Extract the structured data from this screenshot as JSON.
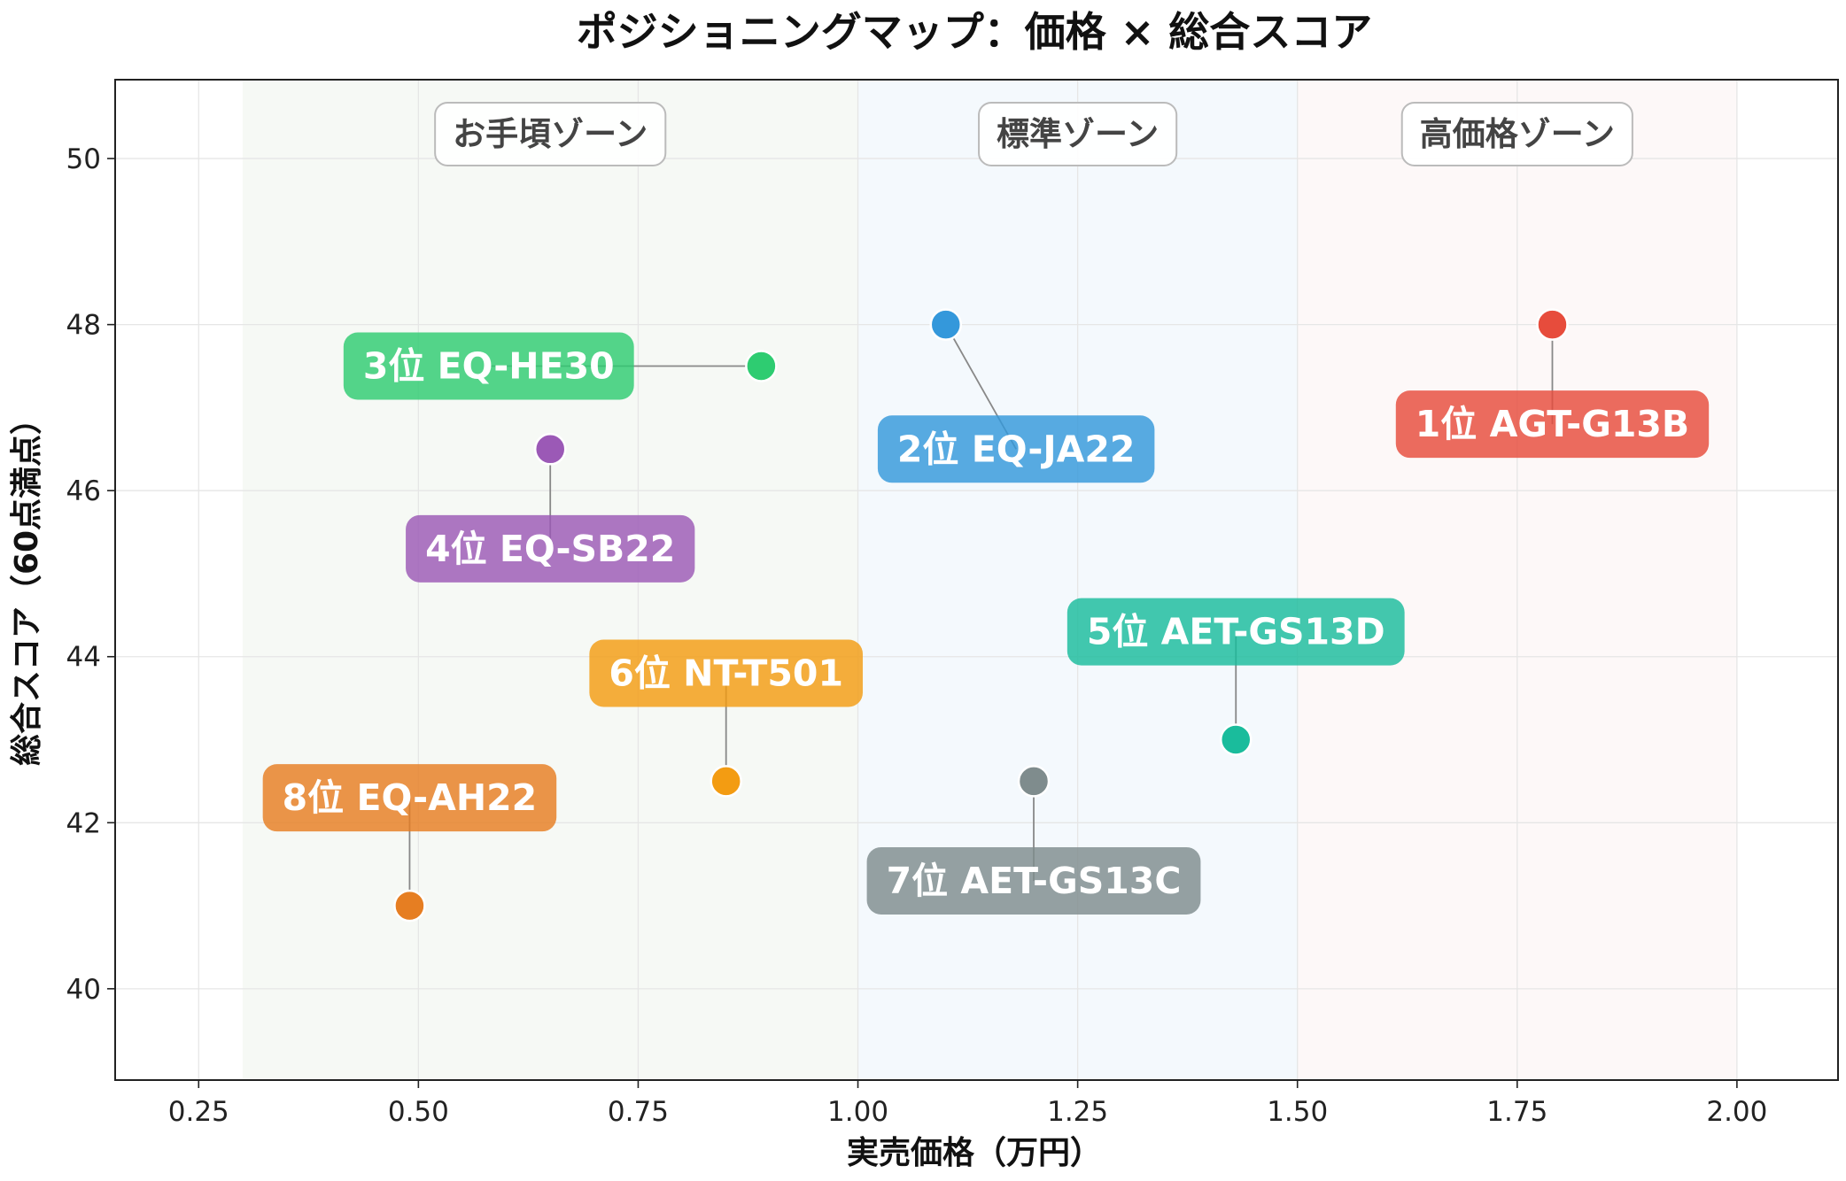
{
  "chart_data": {
    "type": "scatter",
    "title": "ポジショニングマップ：価格 × 総合スコア",
    "xlabel": "実売価格（万円）",
    "ylabel": "総合スコア（60点満点）",
    "xlim": [
      0.155,
      2.115
    ],
    "ylim": [
      38.9,
      50.95
    ],
    "x_ticks": [
      "0.25",
      "0.50",
      "0.75",
      "1.00",
      "1.25",
      "1.50",
      "1.75",
      "2.00"
    ],
    "x_tick_values": [
      0.25,
      0.5,
      0.75,
      1.0,
      1.25,
      1.5,
      1.75,
      2.0
    ],
    "y_ticks": [
      "40",
      "42",
      "44",
      "46",
      "48",
      "50"
    ],
    "y_tick_values": [
      40,
      42,
      44,
      46,
      48,
      50
    ],
    "grid": true,
    "zones": [
      {
        "label": "お手頃ゾーン",
        "x_range": [
          0.3,
          1.0
        ],
        "color": "#e8efe6"
      },
      {
        "label": "標準ゾーン",
        "x_range": [
          1.0,
          1.5
        ],
        "color": "#e3f0f9"
      },
      {
        "label": "高価格ゾーン",
        "x_range": [
          1.5,
          2.0
        ],
        "color": "#fbeeee"
      }
    ],
    "points": [
      {
        "label": "1位 AGT-G13B",
        "x": 1.79,
        "y": 48.0,
        "color": "#e74c3c",
        "label_x": 1.79,
        "label_y": 46.8
      },
      {
        "label": "2位 EQ-JA22",
        "x": 1.1,
        "y": 48.0,
        "color": "#3498db",
        "label_x": 1.18,
        "label_y": 46.5
      },
      {
        "label": "3位 EQ-HE30",
        "x": 0.89,
        "y": 47.5,
        "color": "#2ecc71",
        "label_x": 0.58,
        "label_y": 47.5
      },
      {
        "label": "4位 EQ-SB22",
        "x": 0.65,
        "y": 46.5,
        "color": "#9b59b6",
        "label_x": 0.65,
        "label_y": 45.3
      },
      {
        "label": "5位 AET-GS13D",
        "x": 1.43,
        "y": 43.0,
        "color": "#1abc9c",
        "label_x": 1.43,
        "label_y": 44.3
      },
      {
        "label": "6位 NT-T501",
        "x": 0.85,
        "y": 42.5,
        "color": "#f39c12",
        "label_x": 0.85,
        "label_y": 43.8
      },
      {
        "label": "7位 AET-GS13C",
        "x": 1.2,
        "y": 42.5,
        "color": "#7f8c8d",
        "label_x": 1.2,
        "label_y": 41.3
      },
      {
        "label": "8位 EQ-AH22",
        "x": 0.49,
        "y": 41.0,
        "color": "#e67e22",
        "label_x": 0.49,
        "label_y": 42.3
      }
    ]
  }
}
